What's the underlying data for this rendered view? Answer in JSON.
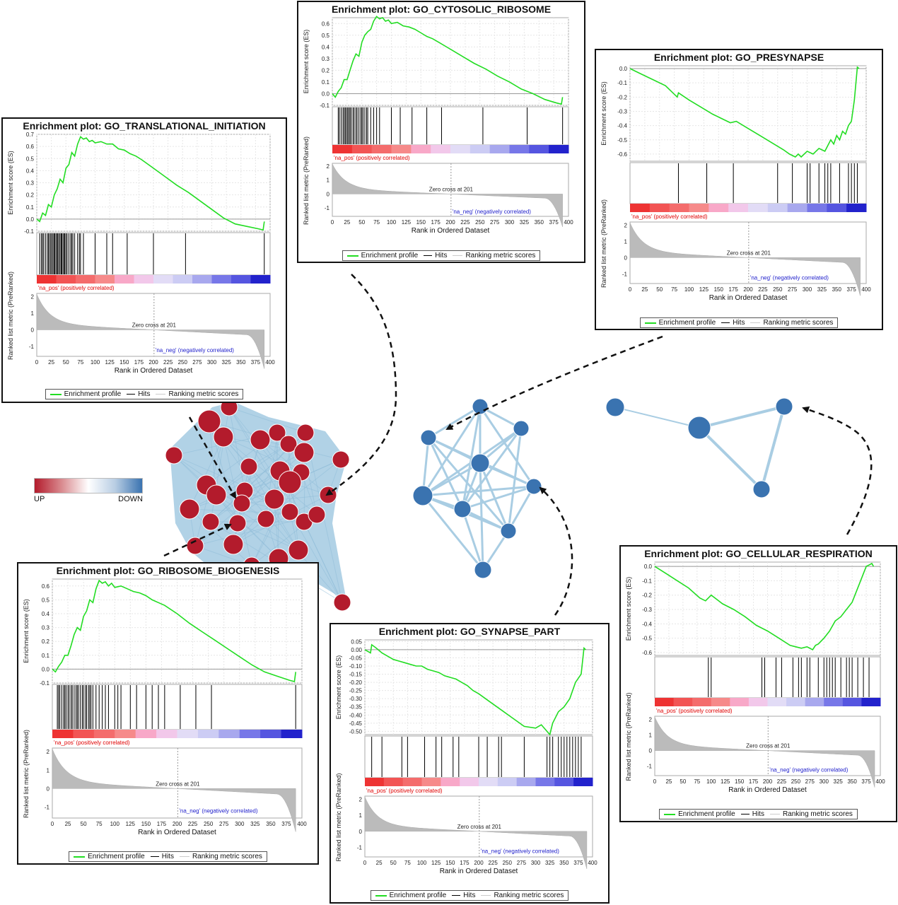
{
  "colors": {
    "es_line": "#22dd22",
    "up_node": "#b31b2c",
    "down_node": "#3a73b0",
    "edge": "#a9cde3",
    "pos_label": "#e00000",
    "neg_label": "#2222cc"
  },
  "colorbar": {
    "up_label": "UP",
    "down_label": "DOWN"
  },
  "common": {
    "ylabel_es": "Enrichment score (ES)",
    "ylabel_rank": "Ranked list metric (PreRanked)",
    "xlabel": "Rank in Ordered Dataset",
    "pos_label": "'na_pos' (positively correlated)",
    "neg_label": "'na_neg' (negatively correlated)",
    "zero_cross": "Zero cross at 201",
    "legend_profile": "Enrichment profile",
    "legend_hits": "Hits",
    "legend_ranking": "Ranking metric scores",
    "x_ticks": [
      "0",
      "25",
      "50",
      "75",
      "100",
      "125",
      "150",
      "175",
      "200",
      "225",
      "250",
      "275",
      "300",
      "325",
      "350",
      "375",
      "400"
    ],
    "rank_ticks": [
      "2",
      "1",
      "0",
      "-1"
    ]
  },
  "chart_data": [
    {
      "id": "translational",
      "type": "line",
      "title": "Enrichment plot: GO_TRANSLATIONAL_INITIATION",
      "es_ticks": [
        "0.7",
        "0.6",
        "0.5",
        "0.4",
        "0.3",
        "0.2",
        "0.1",
        "0.0",
        "-0.1"
      ],
      "ylim": [
        -0.1,
        0.7
      ],
      "xlim": [
        0,
        400
      ],
      "x": [
        0,
        5,
        10,
        15,
        20,
        25,
        30,
        35,
        40,
        45,
        50,
        55,
        60,
        65,
        70,
        75,
        80,
        85,
        90,
        95,
        100,
        110,
        120,
        130,
        140,
        150,
        160,
        170,
        180,
        200,
        220,
        240,
        260,
        280,
        300,
        320,
        340,
        360,
        380,
        388,
        390
      ],
      "es": [
        0,
        -0.02,
        0.05,
        0.03,
        0.12,
        0.1,
        0.2,
        0.25,
        0.33,
        0.3,
        0.42,
        0.45,
        0.55,
        0.52,
        0.62,
        0.68,
        0.66,
        0.67,
        0.64,
        0.65,
        0.63,
        0.64,
        0.62,
        0.62,
        0.58,
        0.57,
        0.54,
        0.52,
        0.49,
        0.42,
        0.35,
        0.28,
        0.22,
        0.15,
        0.08,
        0.01,
        -0.04,
        -0.06,
        -0.08,
        -0.09,
        -0.02
      ],
      "hits": [
        5,
        8,
        10,
        12,
        15,
        18,
        20,
        22,
        24,
        26,
        28,
        30,
        31,
        33,
        35,
        36,
        38,
        40,
        42,
        43,
        45,
        47,
        48,
        50,
        52,
        55,
        58,
        60,
        62,
        65,
        70,
        73,
        75,
        80,
        100,
        120,
        130,
        155,
        200,
        255,
        390
      ]
    },
    {
      "id": "cytosolic",
      "type": "line",
      "title": "Enrichment plot: GO_CYTOSOLIC_RIBOSOME",
      "es_ticks": [
        "0.6",
        "0.5",
        "0.4",
        "0.3",
        "0.2",
        "0.1",
        "0.0",
        "-0.1"
      ],
      "ylim": [
        -0.1,
        0.65
      ],
      "xlim": [
        0,
        400
      ],
      "x": [
        0,
        5,
        10,
        15,
        20,
        25,
        30,
        35,
        40,
        45,
        50,
        55,
        60,
        65,
        70,
        75,
        80,
        85,
        90,
        95,
        100,
        110,
        120,
        130,
        140,
        150,
        160,
        170,
        180,
        200,
        220,
        240,
        260,
        280,
        300,
        320,
        340,
        360,
        380,
        388,
        390
      ],
      "es": [
        0,
        -0.03,
        0.02,
        0.05,
        0.12,
        0.12,
        0.2,
        0.28,
        0.34,
        0.32,
        0.44,
        0.5,
        0.53,
        0.55,
        0.62,
        0.66,
        0.64,
        0.65,
        0.62,
        0.63,
        0.6,
        0.61,
        0.58,
        0.57,
        0.55,
        0.52,
        0.49,
        0.47,
        0.44,
        0.38,
        0.32,
        0.26,
        0.21,
        0.15,
        0.1,
        0.04,
        0,
        -0.05,
        -0.08,
        -0.09,
        -0.03
      ],
      "hits": [
        10,
        12,
        15,
        18,
        20,
        22,
        24,
        26,
        28,
        30,
        32,
        35,
        37,
        40,
        42,
        45,
        48,
        50,
        52,
        55,
        58,
        60,
        65,
        70,
        75,
        80,
        100,
        115,
        135,
        160,
        185,
        255,
        330,
        390
      ]
    },
    {
      "id": "presynapse",
      "type": "line",
      "title": "Enrichment plot: GO_PRESYNAPSE",
      "es_ticks": [
        "0.0",
        "-0.1",
        "-0.2",
        "-0.3",
        "-0.4",
        "-0.5",
        "-0.6"
      ],
      "ylim": [
        -0.65,
        0.02
      ],
      "xlim": [
        0,
        400
      ],
      "x": [
        0,
        20,
        40,
        60,
        80,
        82,
        100,
        120,
        140,
        160,
        170,
        180,
        200,
        220,
        240,
        260,
        270,
        280,
        285,
        290,
        300,
        310,
        320,
        330,
        340,
        345,
        350,
        355,
        360,
        365,
        370,
        375,
        380,
        385,
        388
      ],
      "es": [
        0,
        -0.04,
        -0.08,
        -0.12,
        -0.2,
        -0.17,
        -0.22,
        -0.27,
        -0.32,
        -0.36,
        -0.38,
        -0.37,
        -0.42,
        -0.47,
        -0.52,
        -0.57,
        -0.6,
        -0.62,
        -0.6,
        -0.62,
        -0.58,
        -0.6,
        -0.56,
        -0.58,
        -0.5,
        -0.53,
        -0.47,
        -0.5,
        -0.44,
        -0.46,
        -0.4,
        -0.37,
        -0.22,
        0.01,
        0
      ],
      "hits": [
        82,
        130,
        175,
        250,
        275,
        300,
        305,
        320,
        330,
        335,
        340,
        355,
        370,
        375,
        380,
        385
      ]
    },
    {
      "id": "ribosome_bio",
      "type": "line",
      "title": "Enrichment plot: GO_RIBOSOME_BIOGENESIS",
      "es_ticks": [
        "0.6",
        "0.5",
        "0.4",
        "0.3",
        "0.2",
        "0.1",
        "0.0",
        "-0.1"
      ],
      "ylim": [
        -0.1,
        0.65
      ],
      "xlim": [
        0,
        400
      ],
      "x": [
        0,
        5,
        10,
        15,
        20,
        25,
        30,
        35,
        40,
        45,
        50,
        55,
        60,
        65,
        70,
        75,
        80,
        85,
        90,
        95,
        100,
        110,
        120,
        130,
        140,
        150,
        160,
        170,
        180,
        200,
        220,
        240,
        260,
        280,
        300,
        320,
        340,
        360,
        380,
        388,
        390
      ],
      "es": [
        0,
        -0.02,
        0.02,
        0.05,
        0.1,
        0.1,
        0.17,
        0.25,
        0.3,
        0.28,
        0.38,
        0.42,
        0.5,
        0.48,
        0.58,
        0.64,
        0.62,
        0.63,
        0.6,
        0.62,
        0.59,
        0.6,
        0.58,
        0.56,
        0.55,
        0.53,
        0.5,
        0.48,
        0.46,
        0.4,
        0.33,
        0.27,
        0.21,
        0.15,
        0.09,
        0.03,
        -0.02,
        -0.05,
        -0.08,
        -0.09,
        -0.02
      ],
      "hits": [
        8,
        10,
        12,
        15,
        18,
        20,
        22,
        25,
        27,
        30,
        32,
        35,
        38,
        40,
        42,
        45,
        48,
        50,
        53,
        55,
        58,
        60,
        62,
        65,
        70,
        75,
        80,
        85,
        90,
        100,
        105,
        110,
        125,
        135,
        150,
        160,
        170,
        180,
        205,
        230,
        255,
        390
      ]
    },
    {
      "id": "synapse_part",
      "type": "line",
      "title": "Enrichment plot: GO_SYNAPSE_PART",
      "es_ticks": [
        "0.05",
        "0.00",
        "-0.05",
        "-0.10",
        "-0.15",
        "-0.20",
        "-0.25",
        "-0.30",
        "-0.35",
        "-0.40",
        "-0.45",
        "-0.50"
      ],
      "ylim": [
        -0.52,
        0.06
      ],
      "xlim": [
        0,
        400
      ],
      "x": [
        0,
        10,
        12,
        20,
        30,
        40,
        50,
        60,
        70,
        80,
        90,
        100,
        110,
        120,
        130,
        140,
        150,
        160,
        170,
        180,
        190,
        200,
        220,
        240,
        260,
        280,
        300,
        310,
        320,
        325,
        330,
        340,
        350,
        360,
        370,
        380,
        385,
        388
      ],
      "es": [
        0,
        -0.02,
        0.03,
        0.01,
        -0.02,
        -0.04,
        -0.06,
        -0.07,
        -0.08,
        -0.09,
        -0.1,
        -0.1,
        -0.12,
        -0.13,
        -0.14,
        -0.16,
        -0.17,
        -0.18,
        -0.2,
        -0.22,
        -0.25,
        -0.27,
        -0.32,
        -0.37,
        -0.42,
        -0.47,
        -0.48,
        -0.46,
        -0.5,
        -0.52,
        -0.45,
        -0.38,
        -0.35,
        -0.3,
        -0.2,
        -0.15,
        0.01,
        0
      ],
      "hits": [
        12,
        30,
        65,
        75,
        105,
        125,
        135,
        155,
        165,
        200,
        215,
        235,
        240,
        280,
        320,
        325,
        330,
        340,
        345,
        350,
        355,
        360,
        365,
        370,
        375,
        380
      ]
    },
    {
      "id": "cellular_resp",
      "type": "line",
      "title": "Enrichment plot: GO_CELLULAR_RESPIRATION",
      "es_ticks": [
        "0.0",
        "-0.1",
        "-0.2",
        "-0.3",
        "-0.4",
        "-0.5",
        "-0.6"
      ],
      "ylim": [
        -0.62,
        0.03
      ],
      "xlim": [
        0,
        400
      ],
      "x": [
        0,
        20,
        40,
        60,
        80,
        90,
        100,
        120,
        140,
        160,
        180,
        200,
        220,
        240,
        250,
        260,
        270,
        280,
        285,
        290,
        300,
        310,
        320,
        330,
        340,
        350,
        355,
        360,
        365,
        370,
        375,
        380,
        385,
        388
      ],
      "es": [
        0,
        -0.05,
        -0.1,
        -0.15,
        -0.22,
        -0.24,
        -0.2,
        -0.26,
        -0.3,
        -0.35,
        -0.41,
        -0.45,
        -0.5,
        -0.55,
        -0.56,
        -0.57,
        -0.56,
        -0.58,
        -0.55,
        -0.54,
        -0.5,
        -0.45,
        -0.38,
        -0.35,
        -0.3,
        -0.25,
        -0.2,
        -0.15,
        -0.1,
        -0.05,
        0,
        0.01,
        0.02,
        0
      ],
      "hits": [
        95,
        100,
        190,
        195,
        215,
        225,
        245,
        255,
        260,
        270,
        275,
        290,
        300,
        305,
        310,
        315,
        320,
        330,
        340,
        345,
        350,
        360,
        370,
        380
      ]
    }
  ]
}
